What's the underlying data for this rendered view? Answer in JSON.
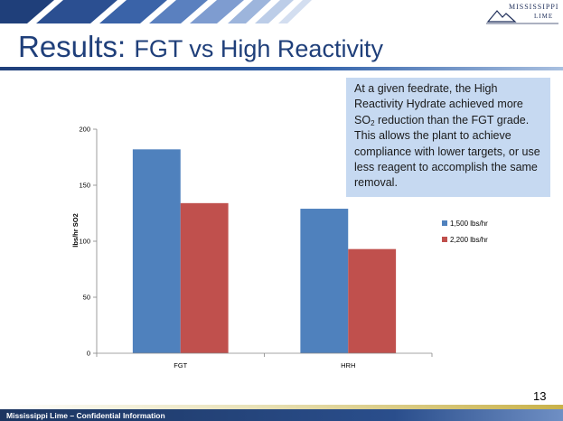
{
  "slide": {
    "title_main": "Results: ",
    "title_sub": "FGT vs High Reactivity",
    "logo": {
      "line1": "MISSISSIPPI",
      "line2": "LIME"
    },
    "callout": {
      "before_sub": "At a given feedrate, the High Reactivity Hydrate achieved more SO",
      "sub": "2",
      "after_sub": " reduction than the FGT grade. This allows the plant to achieve compliance with lower targets, or use less reagent to accomplish the same removal."
    },
    "page_number": "13",
    "footer": "Mississippi Lime – Confidential Information",
    "colors": {
      "title": "#1f3f7a",
      "callout_bg": "#c6d9f1",
      "footer_bg": "#1c3560"
    }
  },
  "chart_data": {
    "type": "bar",
    "categories": [
      "FGT",
      "HRH"
    ],
    "series": [
      {
        "name": "1,500 lbs/hr",
        "color": "#4f81bd",
        "values": [
          182,
          129
        ]
      },
      {
        "name": "2,200 lbs/hr",
        "color": "#c0504d",
        "values": [
          134,
          93
        ]
      }
    ],
    "xlabel": "",
    "ylabel": "lbs/hr SO2",
    "ylim": [
      0,
      200
    ],
    "yticks": [
      0,
      50,
      100,
      150,
      200
    ],
    "grid": false,
    "legend": "right"
  }
}
